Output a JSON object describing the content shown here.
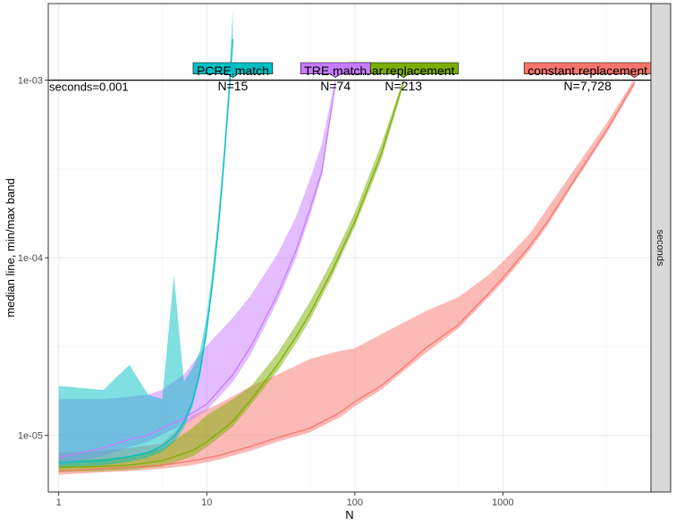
{
  "chart_data": {
    "type": "line",
    "xlabel": "N",
    "ylabel": "median line, min/max band",
    "xscale": "log",
    "yscale": "log",
    "xlim": [
      0.85,
      10000
    ],
    "ylim": [
      4.8e-06,
      0.0027
    ],
    "x_ticks": [
      {
        "value": 1,
        "label": "1"
      },
      {
        "value": 10,
        "label": "10"
      },
      {
        "value": 100,
        "label": "100"
      },
      {
        "value": 1000,
        "label": "1000"
      }
    ],
    "y_ticks": [
      {
        "value": 1e-05,
        "label": "1e-05"
      },
      {
        "value": 0.0001,
        "label": "1e-04"
      },
      {
        "value": 0.001,
        "label": "1e-03"
      }
    ],
    "grid": true,
    "legend": "none",
    "facet_strip": "seconds",
    "hline": {
      "value": 0.001,
      "label": "seconds=0.001"
    },
    "series": [
      {
        "name": "constant.replacement",
        "label_count": "N=7,728",
        "color": "#F8766D",
        "x": [
          1,
          2,
          3,
          5,
          8,
          12,
          20,
          30,
          50,
          80,
          100,
          150,
          200,
          300,
          500,
          800,
          1000,
          1500,
          2000,
          3000,
          5000,
          7728
        ],
        "median": [
          6.3e-06,
          6.5e-06,
          6.6e-06,
          6.8e-06,
          7.2e-06,
          7.7e-06,
          8.7e-06,
          9.7e-06,
          1.1e-05,
          1.35e-05,
          1.55e-05,
          1.9e-05,
          2.3e-05,
          3.1e-05,
          4.2e-05,
          6.3e-05,
          7.7e-05,
          0.000115,
          0.00016,
          0.00027,
          0.00052,
          0.00097
        ],
        "min": [
          6e-06,
          6.2e-06,
          6.3e-06,
          6.5e-06,
          6.8e-06,
          7.3e-06,
          8.2e-06,
          9.2e-06,
          1.04e-05,
          1.27e-05,
          1.46e-05,
          1.8e-05,
          2.2e-05,
          2.9e-05,
          4e-05,
          6e-05,
          7.3e-05,
          0.000109,
          0.000152,
          0.00026,
          0.0005,
          0.00093
        ],
        "max": [
          8e-06,
          8.2e-06,
          8.5e-06,
          9e-06,
          1.3e-05,
          1.5e-05,
          1.9e-05,
          2.2e-05,
          2.7e-05,
          3e-05,
          3.1e-05,
          3.7e-05,
          4.2e-05,
          5e-05,
          6e-05,
          8e-05,
          9.5e-05,
          0.000135,
          0.00019,
          0.00031,
          0.00057,
          0.00102
        ]
      },
      {
        "name": "linear.replacement",
        "label_count": "N=213",
        "color": "#7CAE00",
        "x": [
          1,
          2,
          3,
          5,
          8,
          10,
          15,
          20,
          30,
          40,
          50,
          70,
          100,
          150,
          213
        ],
        "median": [
          6.6e-06,
          6.7e-06,
          6.8e-06,
          7.2e-06,
          8.2e-06,
          9.2e-06,
          1.2e-05,
          1.6e-05,
          2.5e-05,
          3.6e-05,
          4.9e-05,
          8.4e-05,
          0.00016,
          0.00038,
          0.00098
        ],
        "min": [
          6.2e-06,
          6.3e-06,
          6.4e-06,
          6.7e-06,
          7.6e-06,
          8.6e-06,
          1.12e-05,
          1.5e-05,
          2.3e-05,
          3.3e-05,
          4.5e-05,
          7.8e-05,
          0.00015,
          0.00035,
          0.00093
        ],
        "max": [
          7.2e-06,
          7.4e-06,
          7.6e-06,
          8.5e-06,
          1.1e-05,
          1.3e-05,
          1.6e-05,
          1.9e-05,
          2.9e-05,
          4.2e-05,
          5.7e-05,
          9.6e-05,
          0.00018,
          0.00043,
          0.00102
        ]
      },
      {
        "name": "TRE.match",
        "label_count": "N=74",
        "color": "#C77CFF",
        "x": [
          1,
          2,
          3,
          4,
          5,
          7,
          10,
          15,
          20,
          30,
          40,
          50,
          60,
          74
        ],
        "median": [
          7.5e-06,
          8.5e-06,
          9.5e-06,
          1e-05,
          1.1e-05,
          1.25e-05,
          1.5e-05,
          2.2e-05,
          3.2e-05,
          6.2e-05,
          0.00011,
          0.00019,
          0.00031,
          0.00097
        ],
        "min": [
          6.8e-06,
          7.7e-06,
          8.6e-06,
          9.2e-06,
          1.01e-05,
          1.15e-05,
          1.38e-05,
          2e-05,
          2.9e-05,
          5.7e-05,
          0.0001,
          0.000175,
          0.00029,
          0.00092
        ],
        "max": [
          1.6e-05,
          1.6e-05,
          1.65e-05,
          1.7e-05,
          1.8e-05,
          2.2e-05,
          3.2e-05,
          4.6e-05,
          6.2e-05,
          0.000105,
          0.00017,
          0.00028,
          0.00044,
          0.00103
        ]
      },
      {
        "name": "PCRE.match",
        "label_count": "N=15",
        "color": "#00BFC4",
        "x": [
          1,
          2,
          3,
          4,
          5,
          6,
          7,
          8,
          9,
          10,
          11,
          12,
          13,
          14,
          15
        ],
        "median": [
          7e-06,
          7.2e-06,
          7.6e-06,
          8e-06,
          8.7e-06,
          9.8e-06,
          1.18e-05,
          1.55e-05,
          2.3e-05,
          4e-05,
          7.5e-05,
          0.00015,
          0.00033,
          0.00075,
          0.0017
        ],
        "min": [
          6.6e-06,
          6.8e-06,
          7.1e-06,
          7.5e-06,
          8.1e-06,
          9.1e-06,
          1.1e-05,
          1.45e-05,
          2.15e-05,
          3.7e-05,
          7e-05,
          0.00014,
          0.00031,
          0.0007,
          0.0016
        ],
        "max": [
          1.9e-05,
          1.8e-05,
          2.5e-05,
          1.7e-05,
          1.6e-05,
          8e-05,
          2e-05,
          2.4e-05,
          3e-05,
          4.8e-05,
          9e-05,
          0.00018,
          0.00039,
          0.0009,
          0.0025
        ]
      }
    ]
  }
}
